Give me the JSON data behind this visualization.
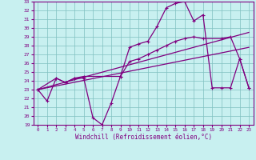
{
  "xlabel": "Windchill (Refroidissement éolien,°C)",
  "bg_color": "#c8f0f0",
  "line_color": "#800080",
  "grid_color": "#80c0c0",
  "xlim": [
    -0.5,
    23.5
  ],
  "ylim": [
    19,
    33
  ],
  "xticks": [
    0,
    1,
    2,
    3,
    4,
    5,
    6,
    7,
    8,
    9,
    10,
    11,
    12,
    13,
    14,
    15,
    16,
    17,
    18,
    19,
    20,
    21,
    22,
    23
  ],
  "yticks": [
    19,
    20,
    21,
    22,
    23,
    24,
    25,
    26,
    27,
    28,
    29,
    30,
    31,
    32,
    33
  ],
  "series1_x": [
    0,
    1,
    2,
    3,
    4,
    5,
    6,
    7,
    8,
    9,
    10,
    11,
    12,
    13,
    14,
    15,
    16,
    17,
    18,
    19,
    20,
    21,
    22,
    23
  ],
  "series1_y": [
    23.0,
    21.7,
    24.3,
    23.8,
    24.3,
    24.3,
    19.8,
    19.0,
    21.5,
    24.5,
    27.8,
    28.2,
    28.5,
    30.2,
    32.3,
    32.8,
    33.0,
    30.8,
    31.5,
    23.2,
    23.2,
    23.2,
    26.5,
    23.2
  ],
  "series2_x": [
    0,
    2,
    3,
    4,
    5,
    9,
    10,
    11,
    12,
    13,
    14,
    15,
    16,
    17,
    18,
    20,
    21,
    22,
    23
  ],
  "series2_y": [
    23.0,
    24.3,
    23.8,
    24.3,
    24.5,
    24.5,
    26.2,
    26.5,
    27.0,
    27.5,
    28.0,
    28.5,
    28.8,
    29.0,
    28.8,
    28.8,
    29.0,
    26.5,
    23.2
  ],
  "series3_x": [
    0,
    23
  ],
  "series3_y": [
    23.0,
    29.5
  ],
  "series4_x": [
    0,
    23
  ],
  "series4_y": [
    23.0,
    27.8
  ]
}
